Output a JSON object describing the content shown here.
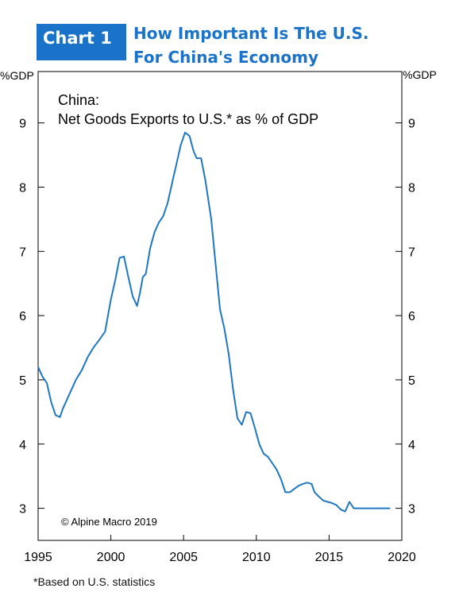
{
  "header": {
    "badge": "Chart 1",
    "title_line1": "How Important Is The U.S.",
    "title_line2": "For China's Economy"
  },
  "footnote": "*Based on U.S. statistics",
  "colors": {
    "accent": "#1a73c8",
    "line": "#1f77c4"
  },
  "chart_data": {
    "type": "line",
    "title": "China:",
    "subtitle": "Net Goods Exports to U.S.* as % of GDP",
    "ylabel_left": "%GDP",
    "ylabel_right": "%GDP",
    "annotation": "© Alpine Macro 2019",
    "xlim": [
      1995,
      2020
    ],
    "ylim": [
      2.5,
      9.8
    ],
    "x_ticks": [
      1995,
      2000,
      2005,
      2010,
      2015,
      2020
    ],
    "y_ticks": [
      3,
      4,
      5,
      6,
      7,
      8,
      9
    ],
    "grid": false,
    "series": [
      {
        "x": [
          1995.0,
          1995.3,
          1995.6,
          1995.9,
          1996.2,
          1996.5,
          1996.7,
          1997.0,
          1997.3,
          1997.6,
          1998.0,
          1998.4,
          1998.8,
          1999.2,
          1999.6,
          2000.0,
          2000.3,
          2000.6,
          2000.9,
          2001.2,
          2001.5,
          2001.8,
          2002.0,
          2002.2,
          2002.4,
          2002.7,
          2003.0,
          2003.3,
          2003.6,
          2003.9,
          2004.2,
          2004.5,
          2004.8,
          2005.1,
          2005.4,
          2005.7,
          2005.9,
          2006.2,
          2006.5,
          2006.9,
          2007.2,
          2007.5,
          2007.8,
          2008.1,
          2008.4,
          2008.7,
          2009.0,
          2009.3,
          2009.6,
          2009.9,
          2010.2,
          2010.5,
          2010.8,
          2011.1,
          2011.4,
          2011.7,
          2012.0,
          2012.3,
          2012.6,
          2012.9,
          2013.2,
          2013.5,
          2013.8,
          2014.0,
          2014.3,
          2014.6,
          2014.9,
          2015.2,
          2015.5,
          2015.8,
          2016.1,
          2016.4,
          2016.7,
          2017.0,
          2017.3,
          2017.6,
          2017.9,
          2018.2,
          2018.5,
          2018.8,
          2019.0,
          2019.2
        ],
        "y": [
          5.2,
          5.05,
          4.95,
          4.65,
          4.45,
          4.42,
          4.55,
          4.7,
          4.85,
          5.0,
          5.15,
          5.35,
          5.5,
          5.62,
          5.75,
          6.25,
          6.55,
          6.9,
          6.92,
          6.6,
          6.3,
          6.15,
          6.35,
          6.6,
          6.65,
          7.05,
          7.3,
          7.45,
          7.55,
          7.75,
          8.05,
          8.35,
          8.65,
          8.85,
          8.8,
          8.55,
          8.45,
          8.45,
          8.1,
          7.5,
          6.8,
          6.1,
          5.8,
          5.4,
          4.85,
          4.4,
          4.3,
          4.5,
          4.48,
          4.25,
          4.0,
          3.85,
          3.8,
          3.7,
          3.6,
          3.45,
          3.25,
          3.25,
          3.3,
          3.35,
          3.38,
          3.4,
          3.38,
          3.25,
          3.18,
          3.12,
          3.1,
          3.08,
          3.05,
          2.98,
          2.95,
          3.1,
          3.0,
          3.0,
          3.0,
          3.0,
          3.0,
          3.0,
          3.0,
          3.0,
          3.0,
          3.0
        ]
      }
    ]
  }
}
